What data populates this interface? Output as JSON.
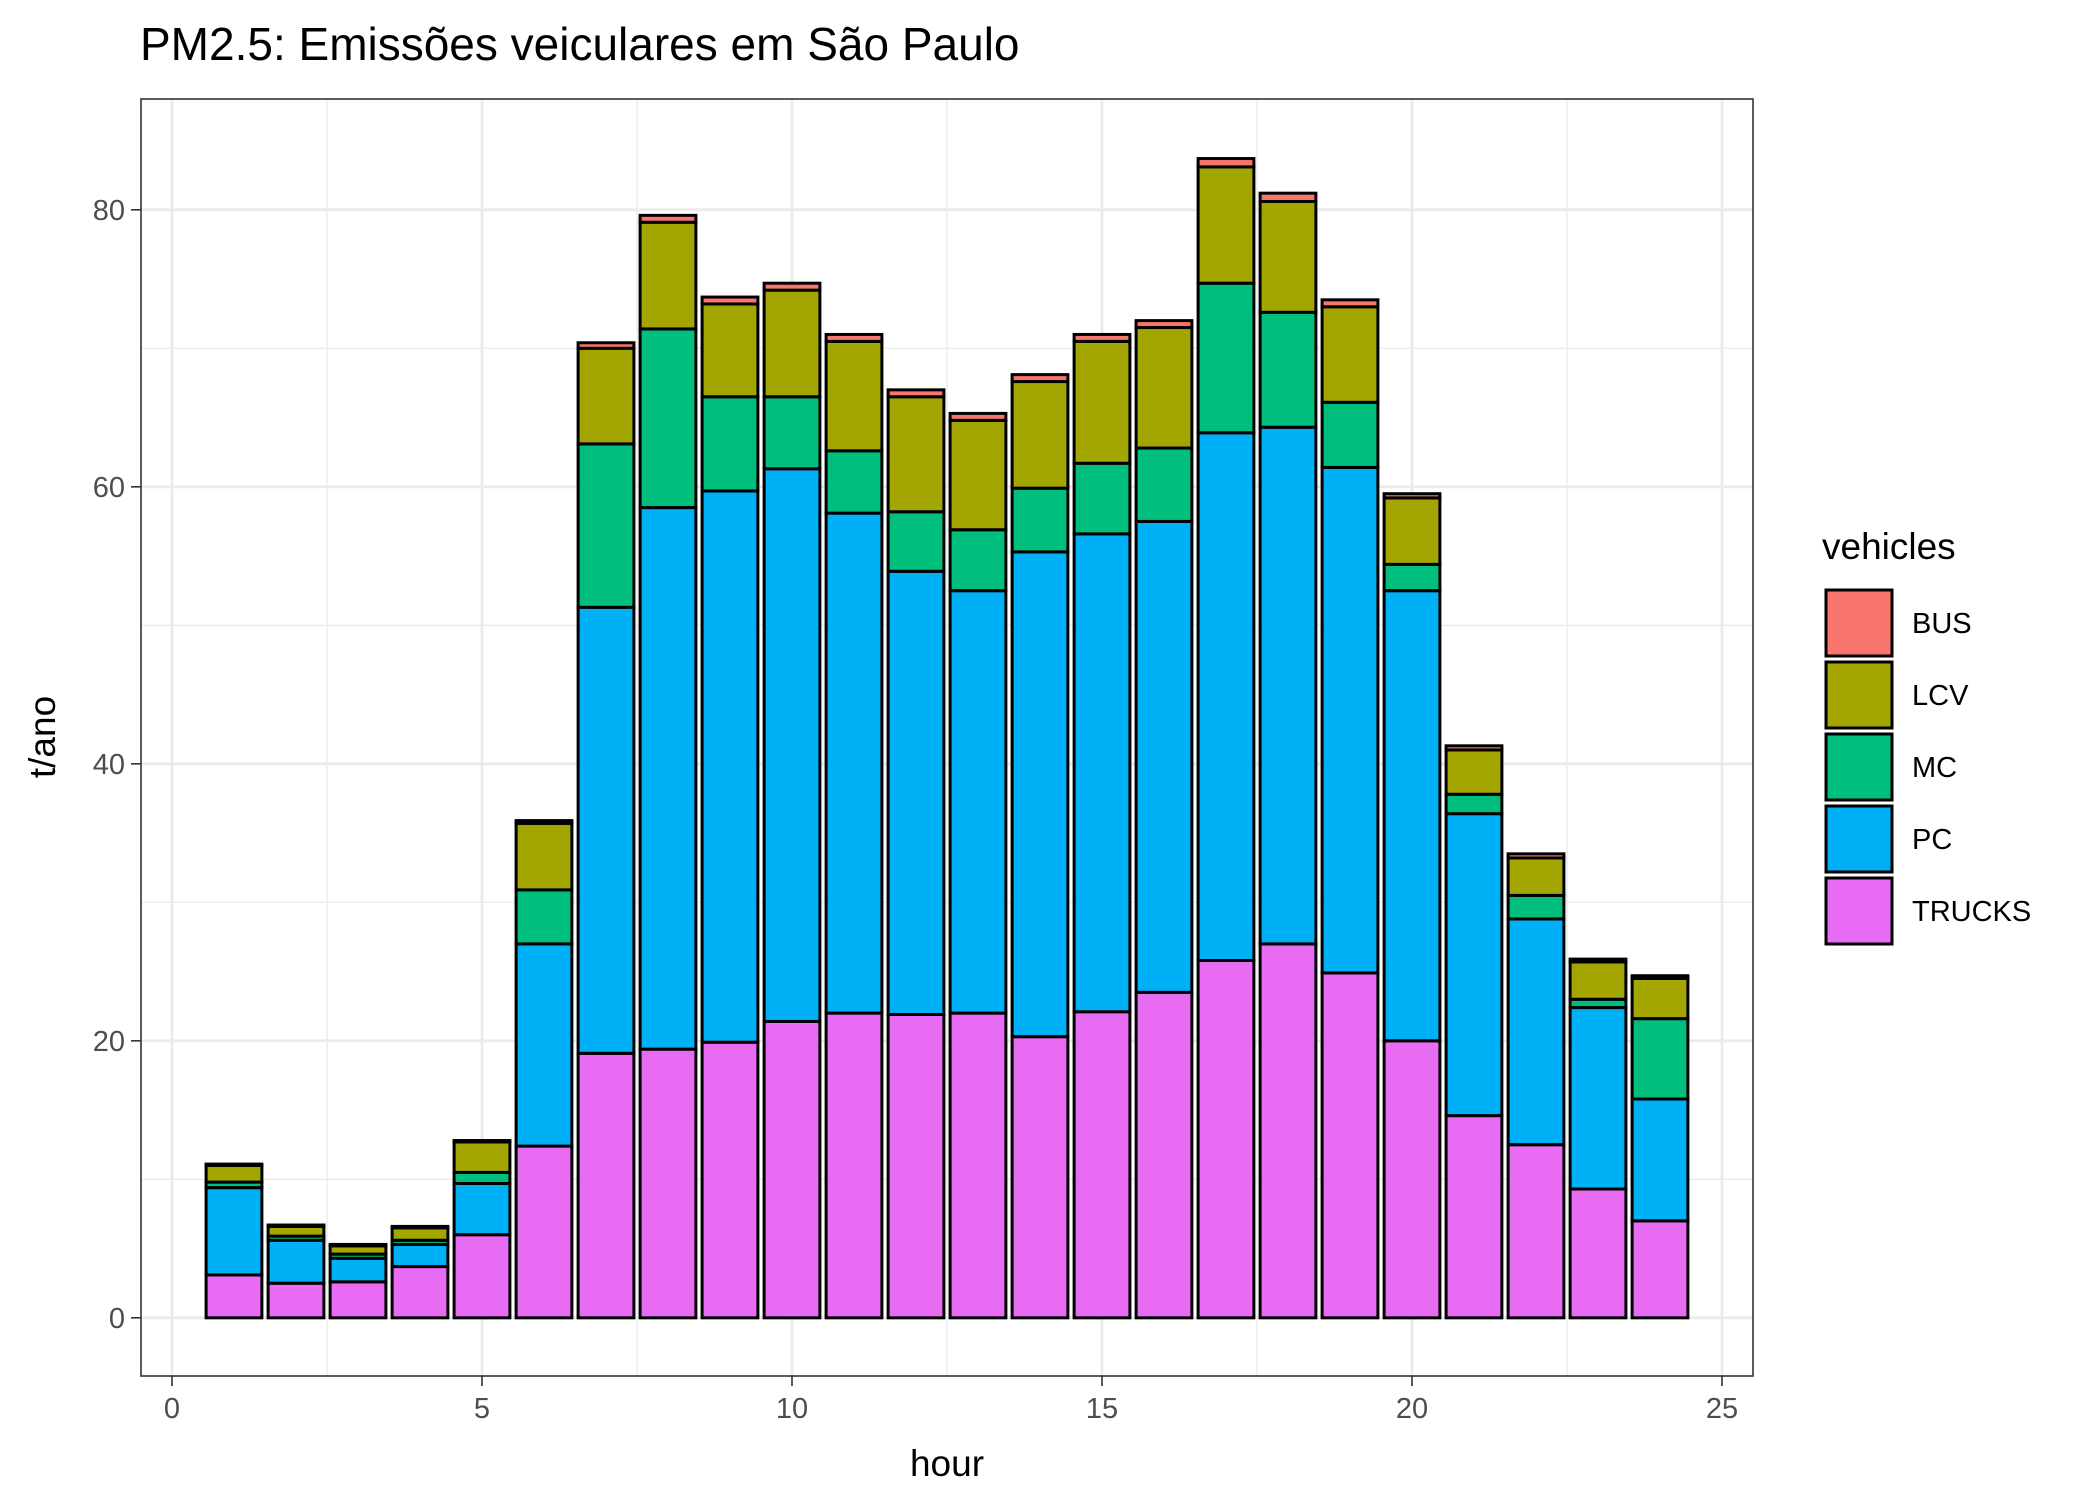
{
  "chart_data": {
    "type": "bar",
    "stacked": true,
    "title": "PM2.5: Emissões veiculares em São Paulo",
    "xlabel": "hour",
    "ylabel": "t/ano",
    "xlim": [
      -0.5,
      25.5
    ],
    "ylim": [
      -4.2,
      88
    ],
    "x_ticks": [
      0,
      5,
      10,
      15,
      20,
      25
    ],
    "y_ticks": [
      0,
      20,
      40,
      60,
      80
    ],
    "grid": true,
    "legend": {
      "title": "vehicles",
      "position": "right"
    },
    "categories": [
      1,
      2,
      3,
      4,
      5,
      6,
      7,
      8,
      9,
      10,
      11,
      12,
      13,
      14,
      15,
      16,
      17,
      18,
      19,
      20,
      21,
      22,
      23,
      24
    ],
    "series": [
      {
        "name": "TRUCKS",
        "color": "#E76BF3",
        "values": [
          3.1,
          2.5,
          2.6,
          3.7,
          6.0,
          12.4,
          19.1,
          19.4,
          19.9,
          21.4,
          22.0,
          21.9,
          22.0,
          20.3,
          22.1,
          23.5,
          25.8,
          27.0,
          24.9,
          20.0,
          14.6,
          12.5,
          9.3,
          7.0
        ]
      },
      {
        "name": "PC",
        "color": "#00B0F6",
        "values": [
          6.3,
          3.1,
          1.7,
          1.6,
          3.7,
          14.6,
          32.2,
          39.1,
          39.8,
          39.9,
          36.1,
          32.0,
          30.5,
          35.0,
          34.5,
          34.0,
          38.1,
          37.3,
          36.5,
          32.5,
          21.8,
          16.3,
          13.1,
          8.8
        ]
      },
      {
        "name": "MC",
        "color": "#00BF7D",
        "values": [
          0.4,
          0.3,
          0.3,
          0.3,
          0.8,
          3.9,
          11.8,
          12.9,
          6.8,
          5.2,
          4.5,
          4.3,
          4.4,
          4.6,
          5.1,
          5.3,
          10.8,
          8.3,
          4.7,
          1.9,
          1.4,
          1.7,
          0.6,
          5.8
        ]
      },
      {
        "name": "LCV",
        "color": "#A3A500",
        "values": [
          1.2,
          0.7,
          0.6,
          0.9,
          2.2,
          4.8,
          6.9,
          7.7,
          6.7,
          7.7,
          7.9,
          8.3,
          7.9,
          7.7,
          8.8,
          8.7,
          8.4,
          8.0,
          6.9,
          4.8,
          3.2,
          2.7,
          2.7,
          2.9
        ]
      },
      {
        "name": "BUS",
        "color": "#F8766D",
        "values": [
          0.1,
          0.1,
          0.1,
          0.1,
          0.1,
          0.2,
          0.4,
          0.5,
          0.5,
          0.5,
          0.5,
          0.5,
          0.5,
          0.5,
          0.5,
          0.5,
          0.6,
          0.6,
          0.5,
          0.3,
          0.3,
          0.3,
          0.2,
          0.2
        ]
      }
    ]
  }
}
